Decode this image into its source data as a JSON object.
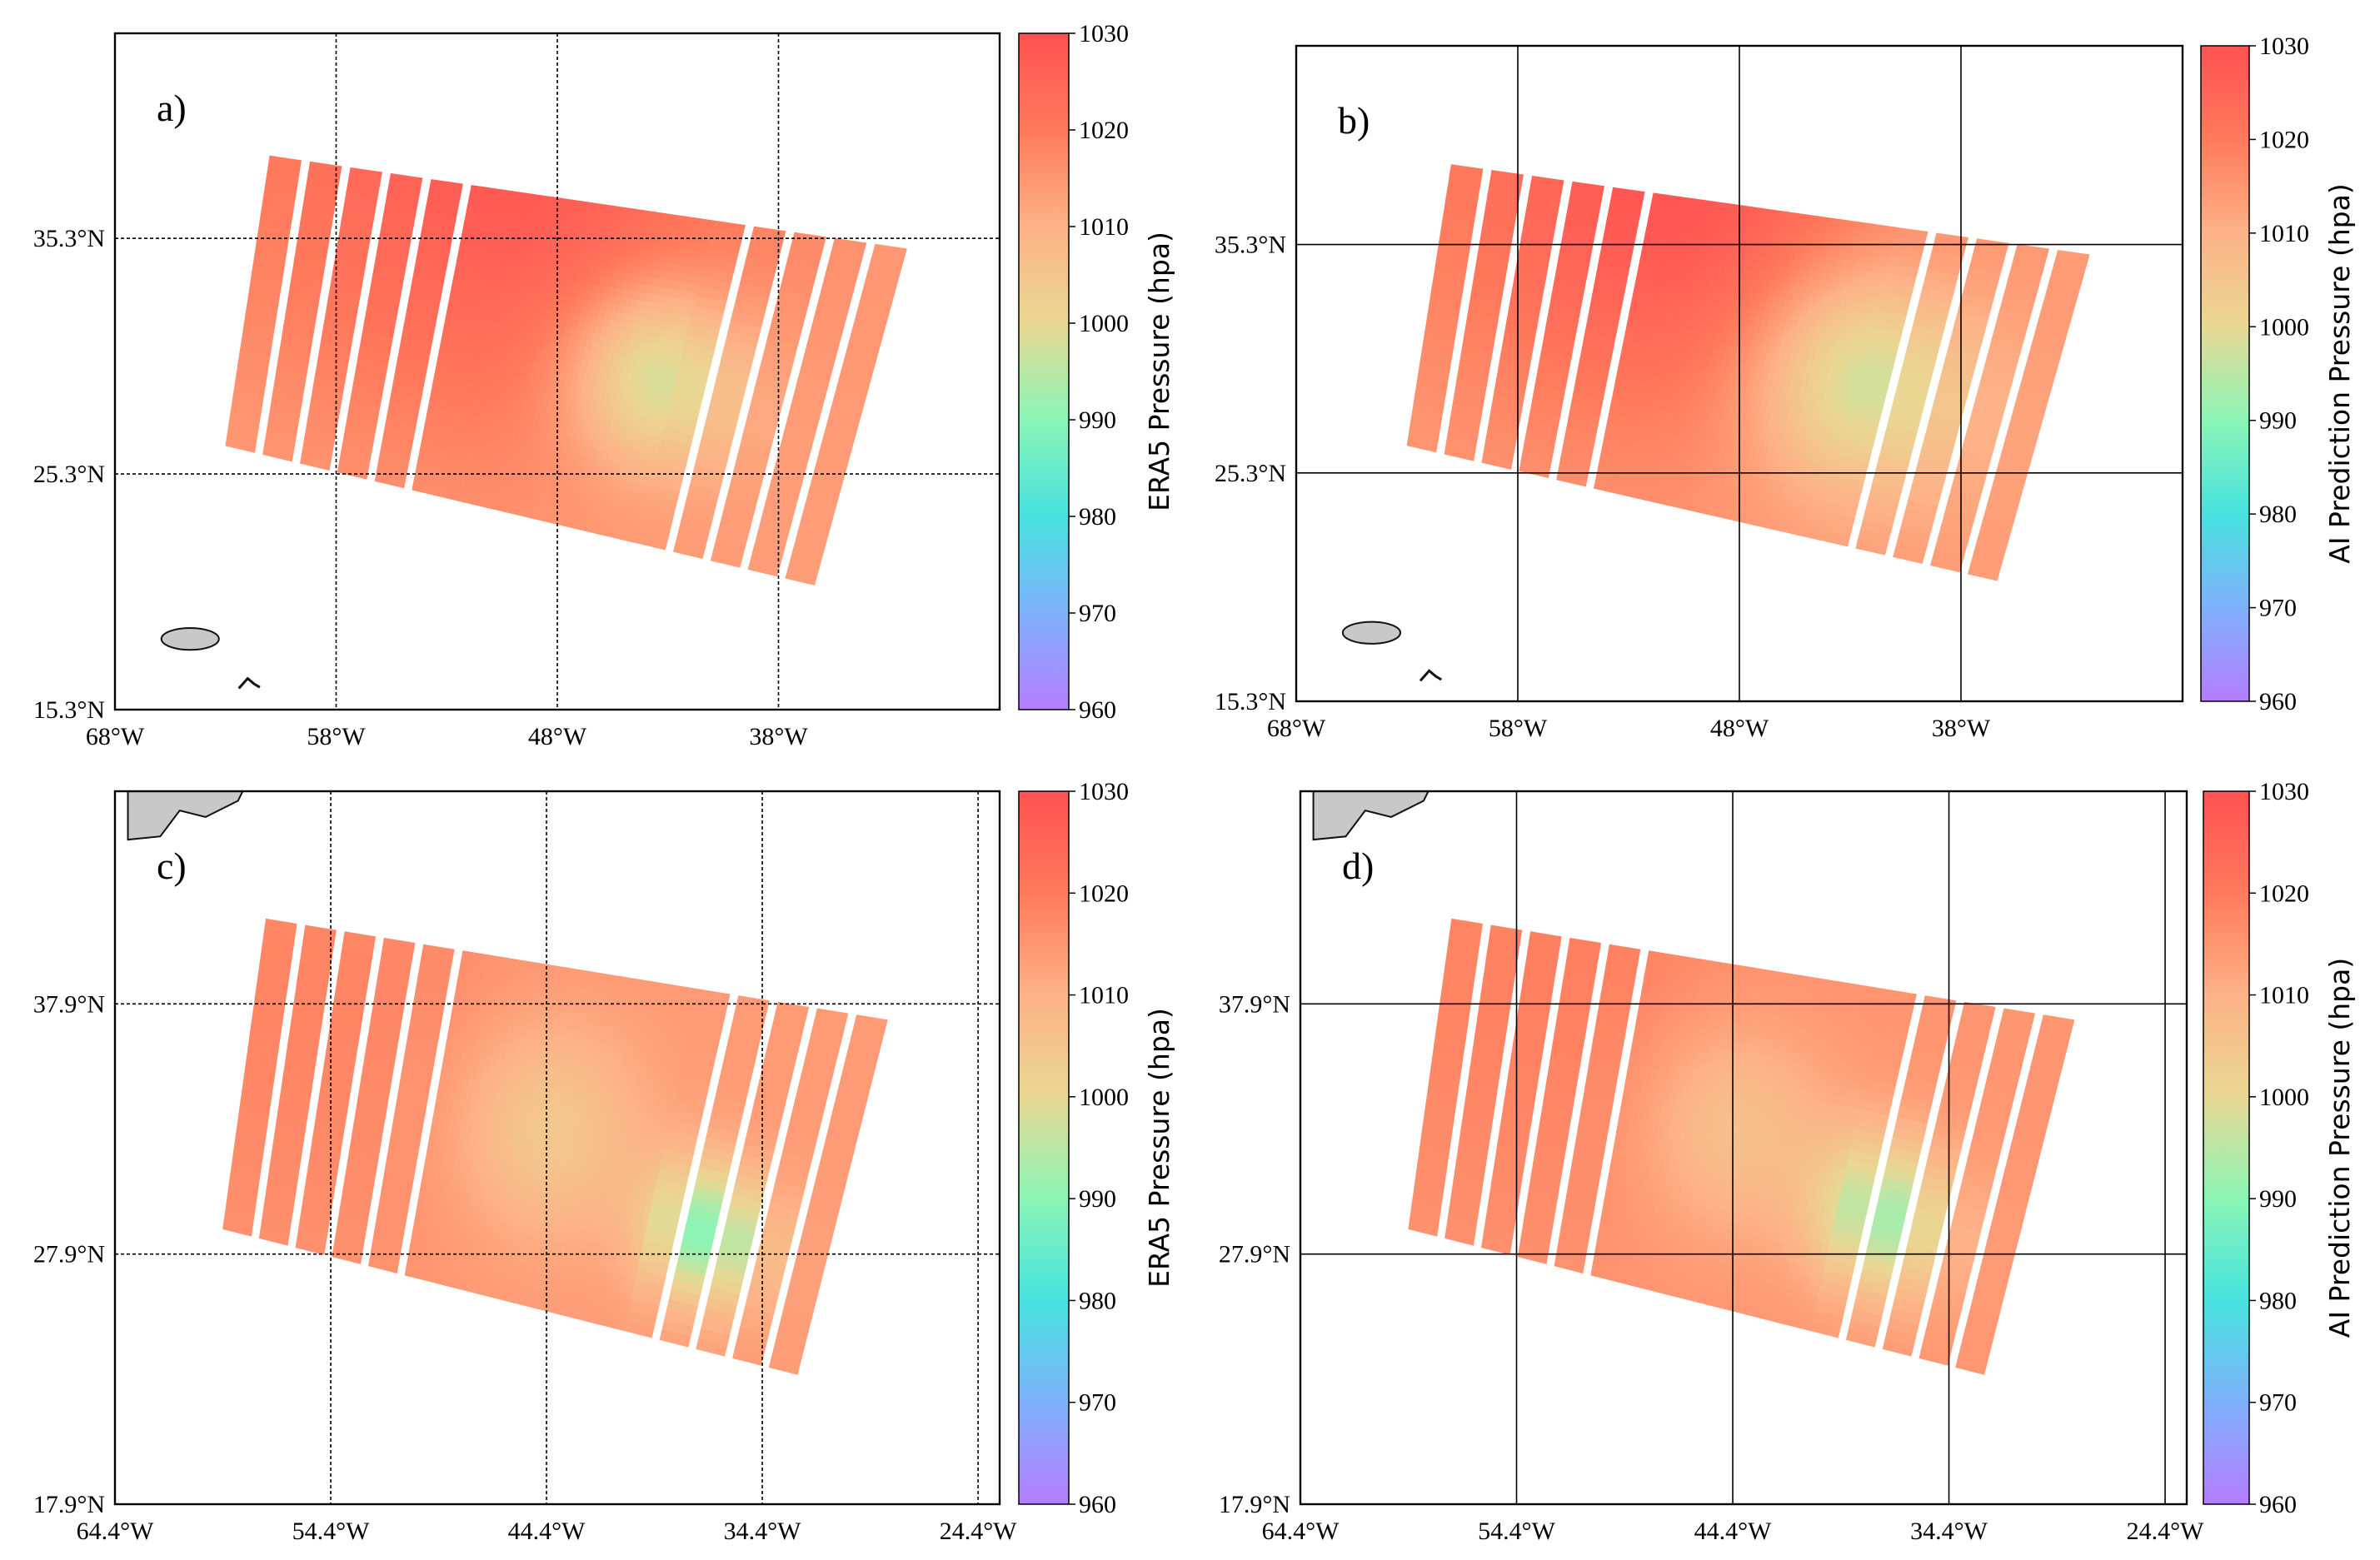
{
  "figure": {
    "background": "#ffffff",
    "colormap": "rainbow",
    "colormap_stops": [
      "#b47dff",
      "#7fb1fb",
      "#47e2de",
      "#8af5b6",
      "#e9d893",
      "#fdb287",
      "#ff7a5c",
      "#ff5252"
    ]
  },
  "chart_data": [
    {
      "panel_label": "a)",
      "type": "heatmap",
      "title": "",
      "xlabel": "",
      "ylabel": "",
      "grid": true,
      "xlim": [
        -68,
        -28
      ],
      "ylim": [
        15.3,
        44
      ],
      "xticks": [
        -68,
        -58,
        -48,
        -38
      ],
      "xtick_labels": [
        "68°W",
        "58°W",
        "48°W",
        "38°W"
      ],
      "yticks": [
        15.3,
        25.3,
        35.3
      ],
      "ytick_labels": [
        "15.3°N",
        "25.3°N",
        "35.3°N"
      ],
      "swath": {
        "corners_lonlat": [
          [
            -61,
            38.8
          ],
          [
            -31.8,
            34.8
          ],
          [
            -36,
            20.5
          ],
          [
            -63,
            26.5
          ]
        ],
        "tracks": 16
      },
      "field": {
        "background_hpa": 1013,
        "high": {
          "lon": -50,
          "lat": 38.5,
          "hpa": 1028,
          "radius_deg": 12
        },
        "low": {
          "lon": -43.5,
          "lat": 29.5,
          "hpa": 992,
          "radius_deg": 4
        }
      },
      "colorbar": {
        "label": "ERA5 Pressure (hpa)",
        "min": 960,
        "max": 1030,
        "ticks": [
          1030,
          1020,
          1010,
          1000,
          990,
          980,
          970,
          960
        ]
      },
      "land": [
        {
          "name": "island",
          "lon": -64.6,
          "lat": 18.3,
          "size": 1.3
        },
        {
          "name": "islet",
          "lon": -61.9,
          "lat": 16.2,
          "size": 0.5
        }
      ]
    },
    {
      "panel_label": "b)",
      "type": "heatmap",
      "title": "",
      "xlabel": "",
      "ylabel": "",
      "grid": true,
      "xlim": [
        -68,
        -28
      ],
      "ylim": [
        15.3,
        44
      ],
      "xticks": [
        -68,
        -58,
        -48,
        -38
      ],
      "xtick_labels": [
        "68°W",
        "58°W",
        "48°W",
        "38°W"
      ],
      "yticks": [
        15.3,
        25.3,
        35.3
      ],
      "ytick_labels": [
        "15.3°N",
        "25.3°N",
        "35.3°N"
      ],
      "swath": {
        "corners_lonlat": [
          [
            -61,
            38.8
          ],
          [
            -31.8,
            34.8
          ],
          [
            -36,
            20.5
          ],
          [
            -63,
            26.5
          ]
        ],
        "tracks": 16
      },
      "field": {
        "background_hpa": 1014,
        "high": {
          "lon": -51,
          "lat": 37.5,
          "hpa": 1029,
          "radius_deg": 10
        },
        "low": {
          "lon": -42.5,
          "lat": 29.5,
          "hpa": 994,
          "radius_deg": 5
        }
      },
      "colorbar": {
        "label": "AI Prediction Pressure (hpa)",
        "min": 960,
        "max": 1030,
        "ticks": [
          1030,
          1020,
          1010,
          1000,
          990,
          980,
          970,
          960
        ]
      },
      "land": [
        {
          "name": "island",
          "lon": -64.6,
          "lat": 18.3,
          "size": 1.3
        },
        {
          "name": "islet",
          "lon": -61.9,
          "lat": 16.2,
          "size": 0.5
        }
      ]
    },
    {
      "panel_label": "c)",
      "type": "heatmap",
      "title": "",
      "xlabel": "",
      "ylabel": "",
      "grid": true,
      "xlim": [
        -64.4,
        -23.4
      ],
      "ylim": [
        17.9,
        46.4
      ],
      "xticks": [
        -64.4,
        -54.4,
        -44.4,
        -34.4,
        -24.4
      ],
      "xtick_labels": [
        "64.4°W",
        "54.4°W",
        "44.4°W",
        "34.4°W",
        "24.4°W"
      ],
      "yticks": [
        17.9,
        27.9,
        37.9
      ],
      "ytick_labels": [
        "17.9°N",
        "27.9°N",
        "37.9°N"
      ],
      "swath": {
        "corners_lonlat": [
          [
            -57.4,
            41.3
          ],
          [
            -28.2,
            37.2
          ],
          [
            -32.4,
            23
          ],
          [
            -59.4,
            28.9
          ]
        ],
        "tracks": 16
      },
      "field": {
        "background_hpa": 1014,
        "high": {
          "lon": -55,
          "lat": 38,
          "hpa": 1018,
          "radius_deg": 12
        },
        "lows": [
          {
            "lon": -44.4,
            "lat": 32.9,
            "hpa": 1003,
            "radius_deg": 4.5
          },
          {
            "lon": -37.0,
            "lat": 28.7,
            "hpa": 990,
            "radius_deg": 2.8
          }
        ]
      },
      "colorbar": {
        "label": "ERA5 Pressure (hpa)",
        "min": 960,
        "max": 1030,
        "ticks": [
          1030,
          1020,
          1010,
          1000,
          990,
          980,
          970,
          960
        ]
      },
      "land": [
        {
          "name": "coastline",
          "lon": -62,
          "lat": 45.5,
          "size": 3
        }
      ]
    },
    {
      "panel_label": "d)",
      "type": "heatmap",
      "title": "",
      "xlabel": "",
      "ylabel": "",
      "grid": true,
      "xlim": [
        -64.4,
        -23.4
      ],
      "ylim": [
        17.9,
        46.4
      ],
      "xticks": [
        -64.4,
        -54.4,
        -44.4,
        -34.4,
        -24.4
      ],
      "xtick_labels": [
        "64.4°W",
        "54.4°W",
        "44.4°W",
        "34.4°W",
        "24.4°W"
      ],
      "yticks": [
        17.9,
        27.9,
        37.9
      ],
      "ytick_labels": [
        "17.9°N",
        "27.9°N",
        "37.9°N"
      ],
      "swath": {
        "corners_lonlat": [
          [
            -57.4,
            41.3
          ],
          [
            -28.2,
            37.2
          ],
          [
            -32.4,
            23
          ],
          [
            -59.4,
            28.9
          ]
        ],
        "tracks": 16
      },
      "field": {
        "background_hpa": 1015,
        "high": {
          "lon": -52,
          "lat": 39,
          "hpa": 1019,
          "radius_deg": 10
        },
        "lows": [
          {
            "lon": -44.4,
            "lat": 33.0,
            "hpa": 1005,
            "radius_deg": 4.5
          },
          {
            "lon": -37.5,
            "lat": 29.4,
            "hpa": 993,
            "radius_deg": 3.2
          }
        ]
      },
      "colorbar": {
        "label": "AI Prediction Pressure (hpa)",
        "min": 960,
        "max": 1030,
        "ticks": [
          1030,
          1020,
          1010,
          1000,
          990,
          980,
          970,
          960
        ]
      },
      "land": [
        {
          "name": "coastline",
          "lon": -62,
          "lat": 45.5,
          "size": 3
        }
      ]
    }
  ]
}
